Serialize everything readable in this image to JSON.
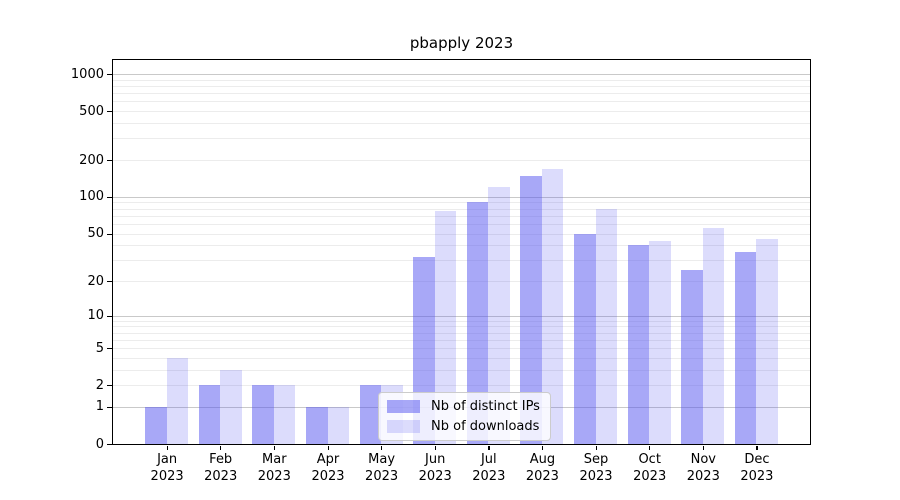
{
  "chart_data": {
    "type": "bar",
    "title": "pbapply 2023",
    "scale": "log1p",
    "categories": [
      "Jan",
      "Feb",
      "Mar",
      "Apr",
      "May",
      "Jun",
      "Jul",
      "Aug",
      "Sep",
      "Oct",
      "Nov",
      "Dec"
    ],
    "category_year": "2023",
    "series": [
      {
        "name": "Nb of distinct IPs",
        "color": "#5252F080",
        "values": [
          1,
          2,
          2,
          1,
          2,
          32,
          90,
          148,
          50,
          40,
          25,
          35
        ]
      },
      {
        "name": "Nb of downloads",
        "color": "#5252F033",
        "values": [
          4,
          3,
          2,
          1,
          2,
          76,
          120,
          170,
          79,
          43,
          55,
          45
        ]
      }
    ],
    "yticks": [
      0,
      1,
      2,
      5,
      10,
      20,
      50,
      100,
      200,
      500,
      1000
    ],
    "ylim": [
      0,
      1300
    ],
    "grid": {
      "major_values": [
        1,
        10,
        100,
        1000
      ],
      "minor_values": [
        2,
        3,
        4,
        5,
        6,
        7,
        8,
        9,
        20,
        30,
        40,
        50,
        60,
        70,
        80,
        90,
        200,
        300,
        400,
        500,
        600,
        700,
        800,
        900
      ],
      "major_color": "#c9c9c9",
      "minor_color": "#ececec"
    },
    "legend_position": "lower center"
  }
}
